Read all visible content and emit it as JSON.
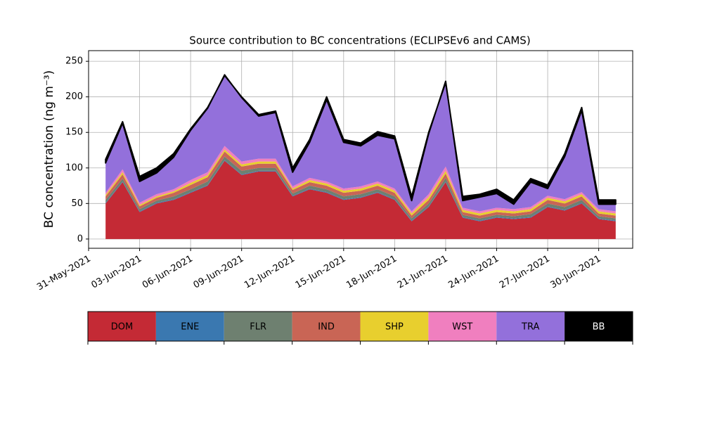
{
  "chart_data": {
    "type": "stacked_area",
    "title": "Source contribution to BC concentrations (ECLIPSEv6 and CAMS)",
    "ylabel": "BC concentration (ng m⁻³)",
    "x": [
      "2021-06-01",
      "2021-06-02",
      "2021-06-03",
      "2021-06-04",
      "2021-06-05",
      "2021-06-06",
      "2021-06-07",
      "2021-06-08",
      "2021-06-09",
      "2021-06-10",
      "2021-06-11",
      "2021-06-12",
      "2021-06-13",
      "2021-06-14",
      "2021-06-15",
      "2021-06-16",
      "2021-06-17",
      "2021-06-18",
      "2021-06-19",
      "2021-06-20",
      "2021-06-21",
      "2021-06-22",
      "2021-06-23",
      "2021-06-24",
      "2021-06-25",
      "2021-06-26",
      "2021-06-27",
      "2021-06-28",
      "2021-06-29",
      "2021-06-30",
      "2021-07-01"
    ],
    "series": [
      {
        "name": "DOM",
        "color": "#c42a35",
        "values": [
          50,
          80,
          38,
          50,
          55,
          65,
          75,
          110,
          90,
          95,
          95,
          60,
          70,
          65,
          55,
          58,
          65,
          55,
          25,
          45,
          80,
          30,
          25,
          30,
          28,
          30,
          45,
          40,
          50,
          28,
          25
        ]
      },
      {
        "name": "ENE",
        "color": "#3a78b0",
        "values": [
          1,
          1,
          1,
          1,
          1,
          1,
          1,
          1,
          1,
          1,
          1,
          1,
          1,
          1,
          1,
          1,
          1,
          1,
          1,
          1,
          1,
          1,
          1,
          1,
          1,
          1,
          1,
          1,
          1,
          1,
          1
        ]
      },
      {
        "name": "FLR",
        "color": "#6e8070",
        "values": [
          4,
          4,
          3,
          3,
          4,
          4,
          5,
          5,
          5,
          4,
          4,
          3,
          4,
          4,
          4,
          4,
          4,
          4,
          3,
          4,
          5,
          3,
          3,
          3,
          3,
          4,
          4,
          4,
          4,
          3,
          3
        ]
      },
      {
        "name": "IND",
        "color": "#c96555",
        "values": [
          5,
          6,
          4,
          4,
          5,
          6,
          6,
          7,
          6,
          6,
          6,
          5,
          5,
          5,
          5,
          5,
          5,
          5,
          4,
          5,
          6,
          4,
          4,
          4,
          4,
          4,
          5,
          5,
          5,
          4,
          4
        ]
      },
      {
        "name": "SHP",
        "color": "#e8cf2e",
        "values": [
          2,
          3,
          2,
          2,
          2,
          3,
          3,
          3,
          3,
          3,
          3,
          2,
          3,
          3,
          3,
          3,
          3,
          3,
          3,
          4,
          4,
          3,
          3,
          3,
          3,
          3,
          3,
          3,
          3,
          3,
          3
        ]
      },
      {
        "name": "WST",
        "color": "#f07fbf",
        "values": [
          3,
          4,
          3,
          3,
          3,
          4,
          4,
          5,
          4,
          4,
          4,
          3,
          3,
          3,
          3,
          3,
          3,
          3,
          3,
          4,
          6,
          3,
          3,
          3,
          3,
          3,
          3,
          3,
          3,
          3,
          3
        ]
      },
      {
        "name": "TRA",
        "color": "#9370db",
        "values": [
          42,
          65,
          30,
          30,
          45,
          70,
          90,
          100,
          90,
          60,
          65,
          20,
          50,
          115,
          65,
          57,
          65,
          70,
          15,
          85,
          120,
          10,
          20,
          20,
          7,
          35,
          10,
          60,
          115,
          7,
          10
        ]
      },
      {
        "name": "BB",
        "color": "#000000",
        "values": [
          5,
          2,
          7,
          7,
          5,
          2,
          1,
          -1,
          1,
          2,
          2,
          6,
          4,
          4,
          4,
          4,
          5,
          4,
          6,
          2,
          -2,
          6,
          4,
          6,
          6,
          5,
          5,
          4,
          4,
          6,
          6
        ]
      }
    ],
    "xlim": [
      "2021-05-31",
      "2021-07-02"
    ],
    "xticks": [
      {
        "value": "2021-05-31",
        "label": "31-May-2021"
      },
      {
        "value": "2021-06-03",
        "label": "03-Jun-2021"
      },
      {
        "value": "2021-06-06",
        "label": "06-Jun-2021"
      },
      {
        "value": "2021-06-09",
        "label": "09-Jun-2021"
      },
      {
        "value": "2021-06-12",
        "label": "12-Jun-2021"
      },
      {
        "value": "2021-06-15",
        "label": "15-Jun-2021"
      },
      {
        "value": "2021-06-18",
        "label": "18-Jun-2021"
      },
      {
        "value": "2021-06-21",
        "label": "21-Jun-2021"
      },
      {
        "value": "2021-06-24",
        "label": "24-Jun-2021"
      },
      {
        "value": "2021-06-27",
        "label": "27-Jun-2021"
      },
      {
        "value": "2021-06-30",
        "label": "30-Jun-2021"
      }
    ],
    "ylim": [
      -13,
      265
    ],
    "yticks": [
      0,
      50,
      100,
      150,
      200,
      250
    ],
    "grid": true
  }
}
